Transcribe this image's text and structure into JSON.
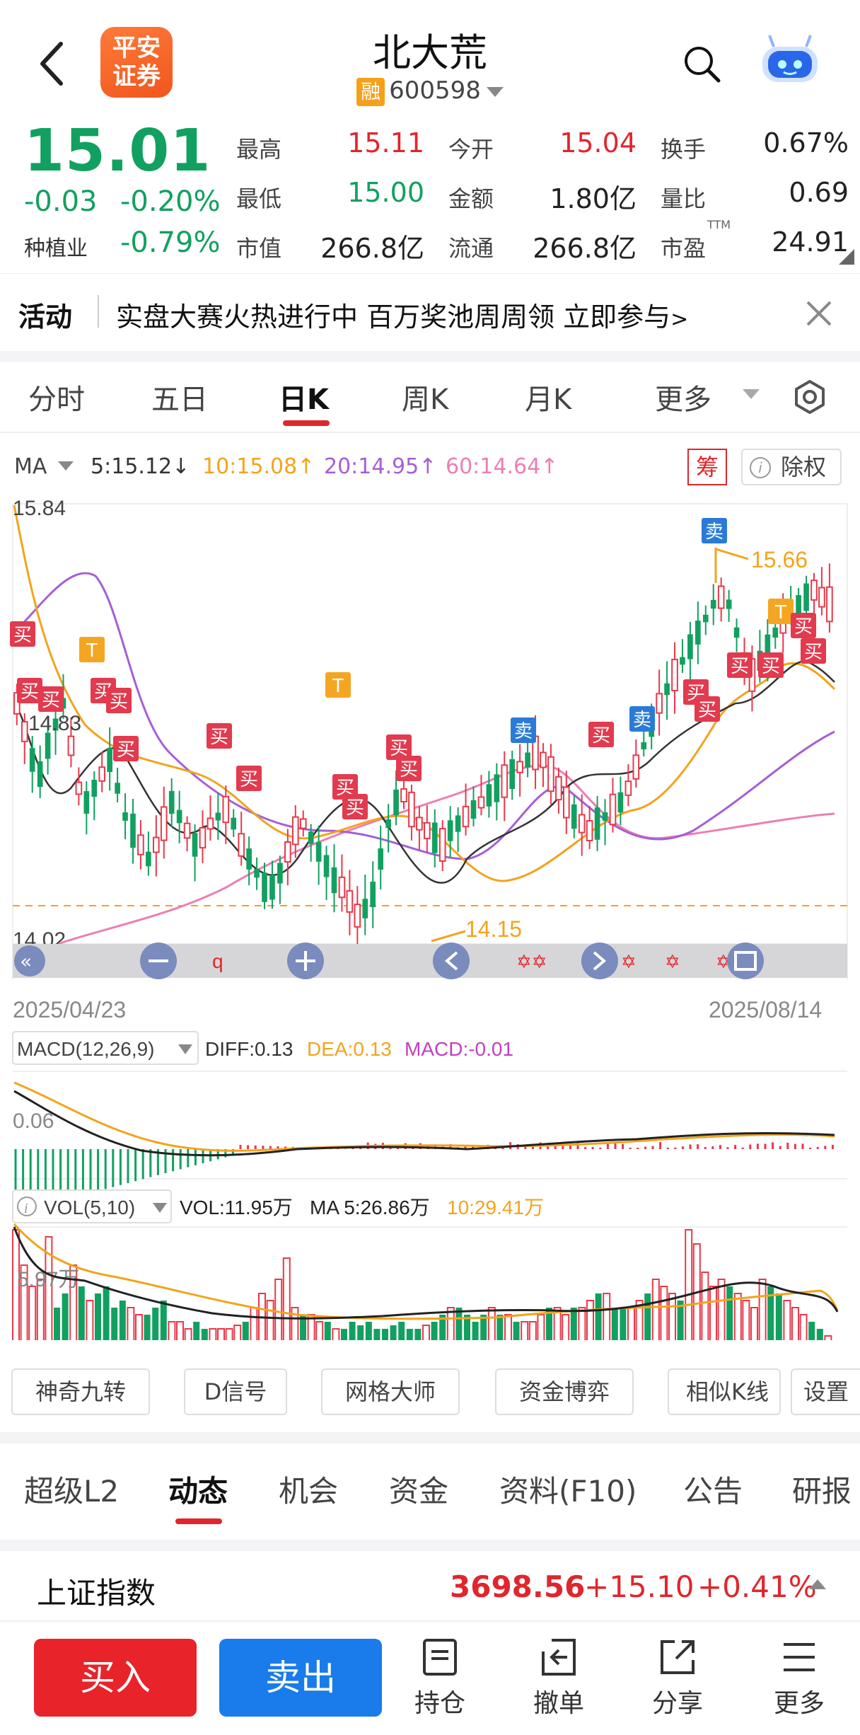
{
  "header": {
    "stock_name": "北大荒",
    "rong_badge": "融",
    "stock_code": "600598",
    "logo_line1": "平安",
    "logo_line2": "证券",
    "icons": [
      "back-arrow-icon",
      "search-icon",
      "robot-assistant-icon"
    ]
  },
  "quote": {
    "price": "15.01",
    "change": "-0.03",
    "change_pct": "-0.20%",
    "sector_label": "种植业",
    "sector_pct": "-0.79%",
    "high_label": "最高",
    "high": "15.11",
    "low_label": "最低",
    "low": "15.00",
    "mcap_label": "市值",
    "mcap": "266.8亿",
    "open_label": "今开",
    "open": "15.04",
    "amount_label": "金额",
    "amount": "1.80亿",
    "float_label": "流通",
    "float": "266.8亿",
    "turnover_label": "换手",
    "turnover": "0.67%",
    "vol_ratio_label": "量比",
    "vol_ratio": "0.69",
    "pe_label": "市盈",
    "pe_sup": "TTM",
    "pe": "24.91"
  },
  "activity": {
    "label": "活动",
    "text": "实盘大赛火热进行中 百万奖池周周领 立即参与",
    "arrow": ">"
  },
  "chart_tabs": {
    "items": [
      "分时",
      "五日",
      "日K",
      "周K",
      "月K",
      "更多"
    ],
    "active": "日K"
  },
  "ma_legend": {
    "ma_label": "MA",
    "ma5": "5:15.12↓",
    "ma10": "10:15.08↑",
    "ma20": "20:14.95↑",
    "ma60": "60:14.64↑",
    "chou": "筹",
    "chuquan": "除权",
    "colors": {
      "ma5": "#333333",
      "ma10": "#f2a41c",
      "ma20": "#a55fd6",
      "ma60": "#ec7fb4"
    }
  },
  "kline": {
    "price_high_label": "15.84",
    "price_mid_label": "14.83",
    "price_low_label": "14.02",
    "peak_price": "15.66",
    "trough_price": "14.15",
    "date_start": "2025/04/23",
    "date_end": "2025/08/14",
    "buy_tag": "买",
    "sell_tag": "卖",
    "t_tag": "T",
    "nav_q": "q",
    "macd_label": "MACD(12,26,9)",
    "diff": "DIFF:0.13",
    "dea": "DEA:0.13",
    "macd": "MACD:-0.01",
    "macd_axis": "0.06",
    "vol_label": "VOL(5,10)",
    "vol": "VOL:11.95万",
    "vol_ma5": "MA 5:26.86万",
    "vol_ma10": "10:29.41万",
    "vol_axis": "5.97万"
  },
  "tools": [
    "神奇九转",
    "D信号",
    "网格大师",
    "资金博弈",
    "相似K线",
    "设置"
  ],
  "info_tabs": {
    "items": [
      "超级L2",
      "动态",
      "机会",
      "资金",
      "资料(F10)",
      "公告",
      "研报"
    ],
    "active": "动态"
  },
  "index": {
    "name": "上证指数",
    "value": "3698.56",
    "change": "+15.10",
    "change_pct": "+0.41%"
  },
  "bottom_bar": {
    "buy": "买入",
    "sell": "卖出",
    "items": [
      "持仓",
      "撤单",
      "分享",
      "更多"
    ]
  }
}
